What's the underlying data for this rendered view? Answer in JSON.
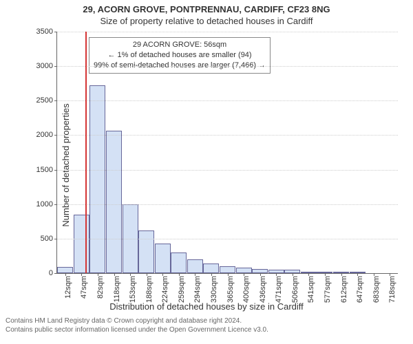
{
  "title_main": "29, ACORN GROVE, PONTPRENNAU, CARDIFF, CF23 8NG",
  "title_sub": "Size of property relative to detached houses in Cardiff",
  "chart": {
    "type": "histogram",
    "ylabel": "Number of detached properties",
    "xlabel": "Distribution of detached houses by size in Cardiff",
    "ylim": [
      0,
      3500
    ],
    "ytick_step": 500,
    "background_color": "#ffffff",
    "grid_color": "#cccccc",
    "axis_color": "#666666",
    "bar_fill": "#d4e1f5",
    "bar_border": "#666699",
    "marker_color": "#d43434",
    "marker_value": 56,
    "categories": [
      "12sqm",
      "47sqm",
      "82sqm",
      "118sqm",
      "153sqm",
      "188sqm",
      "224sqm",
      "259sqm",
      "294sqm",
      "330sqm",
      "365sqm",
      "400sqm",
      "436sqm",
      "471sqm",
      "506sqm",
      "541sqm",
      "577sqm",
      "612sqm",
      "647sqm",
      "683sqm",
      "718sqm"
    ],
    "values": [
      90,
      850,
      2720,
      2060,
      1000,
      620,
      430,
      300,
      200,
      140,
      100,
      80,
      60,
      50,
      50,
      8,
      8,
      8,
      8,
      0,
      0
    ],
    "bar_width_ratio": 0.98,
    "label_fontsize": 13,
    "tick_fontsize": 11
  },
  "annotation": {
    "line1": "29 ACORN GROVE: 56sqm",
    "line2": "← 1% of detached houses are smaller (94)",
    "line3": "99% of semi-detached houses are larger (7,466) →",
    "border_color": "#888888",
    "fontsize": 11
  },
  "footer": {
    "line1": "Contains HM Land Registry data © Crown copyright and database right 2024.",
    "line2": "Contains public sector information licensed under the Open Government Licence v3.0."
  }
}
